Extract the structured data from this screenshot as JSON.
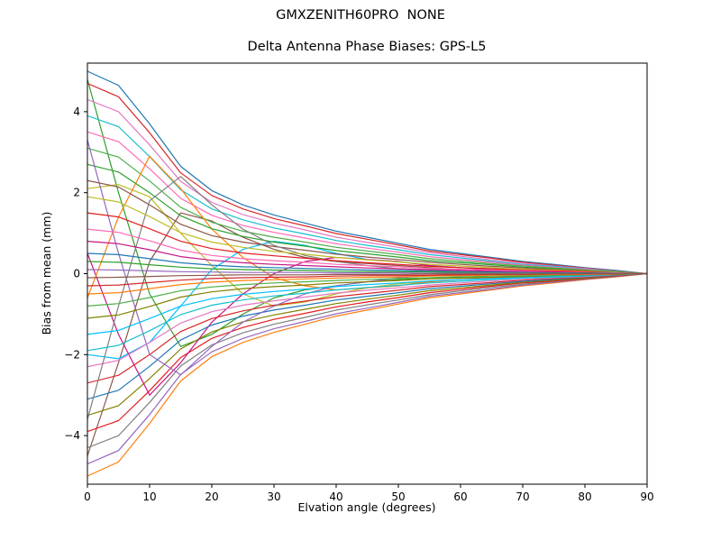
{
  "chart_data": {
    "type": "line",
    "title": "GMXZENITH60PRO  NONE",
    "subtitle": "Delta Antenna Phase Biases: GPS-L5",
    "xlabel": "Elvation angle (degrees)",
    "ylabel": "Bias from mean (mm)",
    "xlim": [
      0,
      90
    ],
    "ylim": [
      -5.2,
      5.2
    ],
    "xticks": [
      0,
      10,
      20,
      30,
      40,
      50,
      60,
      70,
      80,
      90
    ],
    "yticks": [
      -4,
      -2,
      0,
      2,
      4
    ],
    "grid": false,
    "legend": "none",
    "x": [
      0,
      5,
      10,
      15,
      20,
      25,
      30,
      35,
      40,
      45,
      50,
      55,
      60,
      65,
      70,
      75,
      80,
      85,
      90
    ],
    "palette": [
      "#1f77b4",
      "#ff7f0e",
      "#2ca02c",
      "#d62728",
      "#9467bd",
      "#8c564b",
      "#e377c2",
      "#7f7f7f",
      "#bcbd22",
      "#17becf",
      "#e41a1c",
      "#00bfff",
      "#ff69b4",
      "#808000",
      "#c71585",
      "#4daf4a"
    ],
    "series": [
      {
        "values": [
          5,
          4.65,
          3.7,
          2.65,
          2.05,
          1.7,
          1.45,
          1.25,
          1.05,
          0.9,
          0.75,
          0.6,
          0.5,
          0.4,
          0.3,
          0.23,
          0.15,
          0.08,
          0
        ]
      },
      {
        "values": [
          -5,
          -4.65,
          -3.7,
          -2.65,
          -2.05,
          -1.7,
          -1.45,
          -1.25,
          -1.05,
          -0.9,
          -0.75,
          -0.6,
          -0.5,
          -0.4,
          -0.3,
          -0.23,
          -0.15,
          -0.08,
          0
        ]
      },
      {
        "values": [
          4.8,
          2.0,
          -0.5,
          -1.8,
          -1.5,
          -1.0,
          -0.6,
          -0.4,
          -0.3,
          -0.2,
          -0.15,
          -0.1,
          -0.1,
          -0.05,
          -0.05,
          -0.03,
          -0.02,
          -0.01,
          0
        ]
      },
      {
        "values": [
          4.7,
          4.37,
          3.48,
          2.49,
          1.93,
          1.6,
          1.36,
          1.18,
          0.99,
          0.85,
          0.71,
          0.56,
          0.47,
          0.38,
          0.28,
          0.21,
          0.14,
          0.07,
          0
        ]
      },
      {
        "values": [
          -4.7,
          -4.37,
          -3.48,
          -2.49,
          -1.93,
          -1.6,
          -1.36,
          -1.18,
          -0.99,
          -0.85,
          -0.71,
          -0.56,
          -0.47,
          -0.38,
          -0.28,
          -0.21,
          -0.14,
          -0.07,
          0
        ]
      },
      {
        "values": [
          -4.5,
          -2.2,
          0.3,
          1.5,
          1.3,
          0.9,
          0.6,
          0.4,
          0.3,
          0.25,
          0.2,
          0.15,
          0.1,
          0.08,
          0.06,
          0.04,
          0.03,
          0.01,
          0
        ]
      },
      {
        "values": [
          4.3,
          4.0,
          3.18,
          2.28,
          1.76,
          1.46,
          1.25,
          1.08,
          0.9,
          0.77,
          0.65,
          0.52,
          0.43,
          0.34,
          0.26,
          0.19,
          0.13,
          0.06,
          0
        ]
      },
      {
        "values": [
          -4.3,
          -4.0,
          -3.18,
          -2.28,
          -1.76,
          -1.46,
          -1.25,
          -1.08,
          -0.9,
          -0.77,
          -0.65,
          -0.52,
          -0.43,
          -0.34,
          -0.26,
          -0.19,
          -0.13,
          -0.06,
          0
        ]
      },
      {
        "values": [
          2.1,
          2.2,
          1.9,
          1.0,
          0.2,
          -0.5,
          -0.8,
          -0.7,
          -0.5,
          -0.35,
          -0.25,
          -0.2,
          -0.15,
          -0.1,
          -0.08,
          -0.05,
          -0.03,
          -0.02,
          0
        ]
      },
      {
        "values": [
          3.9,
          3.63,
          2.89,
          2.07,
          1.6,
          1.33,
          1.13,
          0.98,
          0.82,
          0.7,
          0.59,
          0.47,
          0.39,
          0.31,
          0.23,
          0.18,
          0.12,
          0.06,
          0
        ]
      },
      {
        "values": [
          -3.9,
          -3.63,
          -2.89,
          -2.07,
          -1.6,
          -1.33,
          -1.13,
          -0.98,
          -0.82,
          -0.7,
          -0.59,
          -0.47,
          -0.39,
          -0.31,
          -0.23,
          -0.18,
          -0.12,
          -0.06,
          0
        ]
      },
      {
        "values": [
          -2.0,
          -2.1,
          -1.7,
          -0.8,
          0.1,
          0.6,
          0.8,
          0.7,
          0.5,
          0.35,
          0.3,
          0.2,
          0.15,
          0.12,
          0.08,
          0.06,
          0.04,
          0.02,
          0
        ]
      },
      {
        "values": [
          3.5,
          3.26,
          2.59,
          1.86,
          1.44,
          1.19,
          1.02,
          0.88,
          0.74,
          0.63,
          0.53,
          0.42,
          0.35,
          0.28,
          0.21,
          0.16,
          0.11,
          0.05,
          0
        ]
      },
      {
        "values": [
          -3.5,
          -3.26,
          -2.59,
          -1.86,
          -1.44,
          -1.19,
          -1.02,
          -0.88,
          -0.74,
          -0.63,
          -0.53,
          -0.42,
          -0.35,
          -0.28,
          -0.21,
          -0.16,
          -0.11,
          -0.05,
          0
        ]
      },
      {
        "values": [
          0.5,
          -1.5,
          -3.0,
          -2.2,
          -1.2,
          -0.5,
          0.0,
          0.3,
          0.4,
          0.35,
          0.3,
          0.2,
          0.15,
          0.1,
          0.08,
          0.05,
          0.03,
          0.02,
          0
        ]
      },
      {
        "values": [
          3.1,
          2.88,
          2.29,
          1.64,
          1.27,
          1.05,
          0.9,
          0.78,
          0.65,
          0.56,
          0.47,
          0.37,
          0.31,
          0.25,
          0.19,
          0.14,
          0.09,
          0.05,
          0
        ]
      },
      {
        "values": [
          -3.1,
          -2.88,
          -2.29,
          -1.64,
          -1.27,
          -1.05,
          -0.9,
          -0.78,
          -0.65,
          -0.56,
          -0.47,
          -0.37,
          -0.31,
          -0.25,
          -0.19,
          -0.14,
          -0.09,
          -0.05,
          0
        ]
      },
      {
        "values": [
          -0.6,
          1.4,
          2.9,
          2.1,
          1.1,
          0.4,
          -0.1,
          -0.3,
          -0.4,
          -0.35,
          -0.3,
          -0.2,
          -0.15,
          -0.1,
          -0.07,
          -0.05,
          -0.03,
          -0.01,
          0
        ]
      },
      {
        "values": [
          2.7,
          2.51,
          2.0,
          1.43,
          1.11,
          0.92,
          0.78,
          0.68,
          0.57,
          0.49,
          0.41,
          0.32,
          0.27,
          0.22,
          0.16,
          0.12,
          0.08,
          0.04,
          0
        ]
      },
      {
        "values": [
          -2.7,
          -2.51,
          -2.0,
          -1.43,
          -1.11,
          -0.92,
          -0.78,
          -0.68,
          -0.57,
          -0.49,
          -0.41,
          -0.32,
          -0.27,
          -0.22,
          -0.16,
          -0.12,
          -0.08,
          -0.04,
          0
        ]
      },
      {
        "values": [
          3.3,
          0.5,
          -2.0,
          -2.5,
          -1.8,
          -1.2,
          -0.8,
          -0.5,
          -0.3,
          -0.2,
          -0.1,
          -0.05,
          -0.05,
          -0.03,
          -0.02,
          -0.02,
          -0.01,
          0,
          0
        ]
      },
      {
        "values": [
          2.3,
          2.14,
          1.7,
          1.22,
          0.94,
          0.78,
          0.67,
          0.58,
          0.48,
          0.41,
          0.35,
          0.28,
          0.23,
          0.18,
          0.14,
          0.1,
          0.07,
          0.03,
          0
        ]
      },
      {
        "values": [
          -2.3,
          -2.14,
          -1.7,
          -1.22,
          -0.94,
          -0.78,
          -0.67,
          -0.58,
          -0.48,
          -0.41,
          -0.35,
          -0.28,
          -0.23,
          -0.18,
          -0.14,
          -0.1,
          -0.07,
          -0.03,
          0
        ]
      },
      {
        "values": [
          -3.6,
          -0.8,
          1.8,
          2.4,
          1.7,
          1.1,
          0.7,
          0.45,
          0.3,
          0.2,
          0.12,
          0.08,
          0.05,
          0.04,
          0.03,
          0.02,
          0.01,
          0.01,
          0
        ]
      },
      {
        "values": [
          1.9,
          1.77,
          1.41,
          1.01,
          0.78,
          0.65,
          0.55,
          0.48,
          0.4,
          0.34,
          0.29,
          0.23,
          0.19,
          0.15,
          0.11,
          0.09,
          0.06,
          0.03,
          0
        ]
      },
      {
        "values": [
          -1.9,
          -1.77,
          -1.41,
          -1.01,
          -0.78,
          -0.65,
          -0.55,
          -0.48,
          -0.4,
          -0.34,
          -0.29,
          -0.23,
          -0.19,
          -0.15,
          -0.11,
          -0.09,
          -0.06,
          -0.03,
          0
        ]
      },
      {
        "values": [
          1.5,
          1.4,
          1.11,
          0.8,
          0.62,
          0.51,
          0.44,
          0.38,
          0.32,
          0.27,
          0.23,
          0.18,
          0.15,
          0.12,
          0.09,
          0.07,
          0.05,
          0.02,
          0
        ]
      },
      {
        "values": [
          -1.5,
          -1.4,
          -1.11,
          -0.8,
          -0.62,
          -0.51,
          -0.44,
          -0.38,
          -0.32,
          -0.27,
          -0.23,
          -0.18,
          -0.15,
          -0.12,
          -0.09,
          -0.07,
          -0.05,
          -0.02,
          0
        ]
      },
      {
        "values": [
          1.1,
          1.02,
          0.81,
          0.58,
          0.45,
          0.37,
          0.32,
          0.28,
          0.23,
          0.2,
          0.17,
          0.13,
          0.11,
          0.09,
          0.07,
          0.05,
          0.03,
          0.02,
          0
        ]
      },
      {
        "values": [
          -1.1,
          -1.02,
          -0.81,
          -0.58,
          -0.45,
          -0.37,
          -0.32,
          -0.28,
          -0.23,
          -0.2,
          -0.17,
          -0.13,
          -0.11,
          -0.09,
          -0.07,
          -0.05,
          -0.03,
          -0.02,
          0
        ]
      },
      {
        "values": [
          0.8,
          0.74,
          0.59,
          0.42,
          0.33,
          0.27,
          0.23,
          0.2,
          0.17,
          0.14,
          0.12,
          0.1,
          0.08,
          0.06,
          0.05,
          0.04,
          0.02,
          0.01,
          0
        ]
      },
      {
        "values": [
          -0.8,
          -0.74,
          -0.59,
          -0.42,
          -0.33,
          -0.27,
          -0.23,
          -0.2,
          -0.17,
          -0.14,
          -0.12,
          -0.1,
          -0.08,
          -0.06,
          -0.05,
          -0.04,
          -0.02,
          -0.01,
          0
        ]
      },
      {
        "values": [
          0.5,
          0.47,
          0.37,
          0.27,
          0.21,
          0.17,
          0.15,
          0.13,
          0.11,
          0.09,
          0.08,
          0.06,
          0.05,
          0.04,
          0.03,
          0.02,
          0.02,
          0.01,
          0
        ]
      },
      {
        "values": [
          -0.5,
          -0.47,
          -0.37,
          -0.27,
          -0.21,
          -0.17,
          -0.15,
          -0.13,
          -0.11,
          -0.09,
          -0.08,
          -0.06,
          -0.05,
          -0.04,
          -0.03,
          -0.02,
          -0.02,
          -0.01,
          0
        ]
      },
      {
        "values": [
          0.3,
          0.28,
          0.22,
          0.16,
          0.12,
          0.1,
          0.09,
          0.08,
          0.06,
          0.05,
          0.05,
          0.04,
          0.03,
          0.02,
          0.02,
          0.01,
          0.01,
          0,
          0
        ]
      },
      {
        "values": [
          -0.3,
          -0.28,
          -0.22,
          -0.16,
          -0.12,
          -0.1,
          -0.09,
          -0.08,
          -0.06,
          -0.05,
          -0.05,
          -0.04,
          -0.03,
          -0.02,
          -0.02,
          -0.01,
          -0.01,
          0,
          0
        ]
      },
      {
        "values": [
          0.1,
          0.09,
          0.07,
          0.05,
          0.04,
          0.03,
          0.03,
          0.03,
          0.02,
          0.02,
          0.02,
          0.01,
          0.01,
          0.01,
          0.01,
          0,
          0,
          0,
          0
        ]
      },
      {
        "values": [
          -0.1,
          -0.09,
          -0.07,
          -0.05,
          -0.04,
          -0.03,
          -0.03,
          -0.03,
          -0.02,
          -0.02,
          -0.02,
          -0.01,
          -0.01,
          -0.01,
          -0.01,
          0,
          0,
          0,
          0
        ]
      }
    ]
  }
}
